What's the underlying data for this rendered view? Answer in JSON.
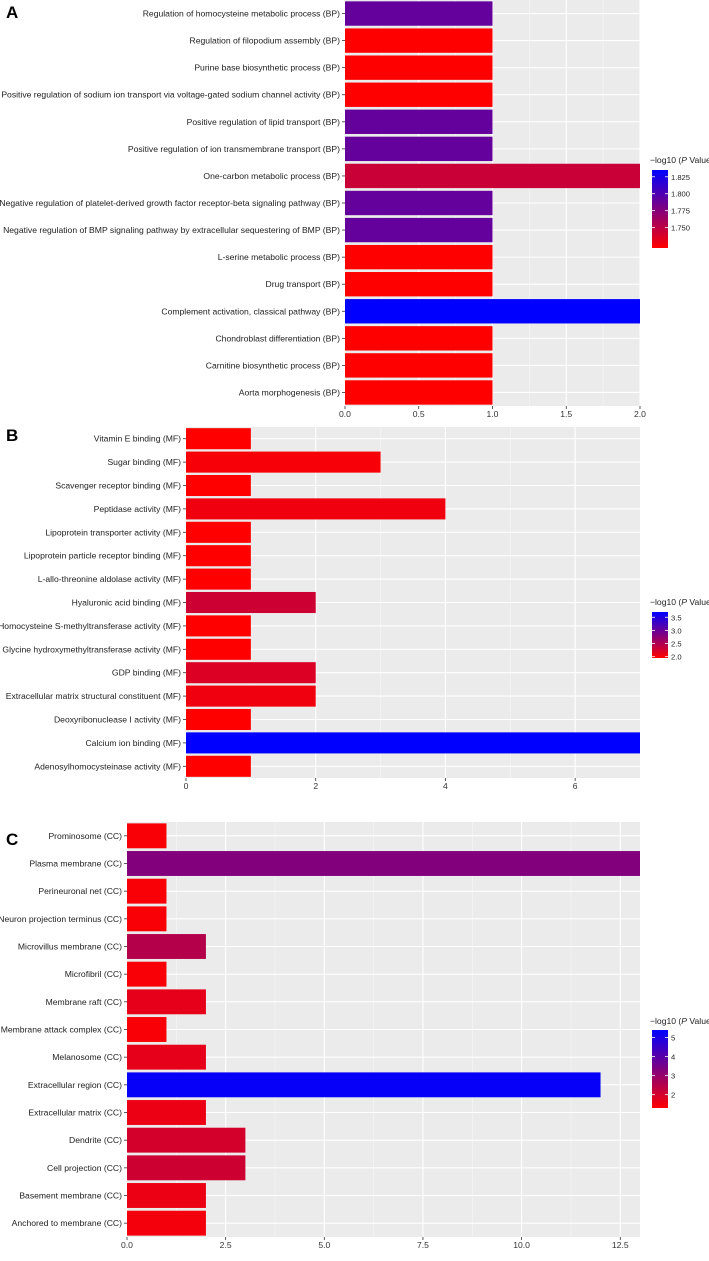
{
  "chart_data": [
    {
      "panel": "A",
      "type": "bar",
      "orientation": "horizontal",
      "categories": [
        "Regulation of homocysteine metabolic process (BP)",
        "Regulation of filopodium assembly (BP)",
        "Purine base biosynthetic process (BP)",
        "Positive regulation of sodium ion transport via voltage-gated sodium channel activity (BP)",
        "Positive regulation of lipid transport (BP)",
        "Positive regulation of ion transmembrane transport (BP)",
        "One-carbon metabolic process (BP)",
        "Negative regulation of platelet-derived growth factor receptor-beta signaling pathway (BP)",
        "Negative regulation of BMP signaling pathway by extracellular sequestering of BMP (BP)",
        "L-serine metabolic process (BP)",
        "Drug transport (BP)",
        "Complement activation, classical pathway (BP)",
        "Chondroblast differentiation (BP)",
        "Carnitine biosynthetic process (BP)",
        "Aorta morphogenesis (BP)"
      ],
      "values": [
        1,
        1,
        1,
        1,
        1,
        1,
        2,
        1,
        1,
        1,
        1,
        2,
        1,
        1,
        1
      ],
      "color_values": [
        1.79,
        1.72,
        1.72,
        1.72,
        1.79,
        1.79,
        1.745,
        1.79,
        1.79,
        1.72,
        1.72,
        1.835,
        1.72,
        1.72,
        1.72
      ],
      "xlim": [
        0,
        2
      ],
      "xticks": [
        0,
        0.5,
        1,
        1.5,
        2
      ],
      "xtick_labels": [
        "0.0",
        "0.5",
        "1.0",
        "1.5",
        "2.0"
      ],
      "legend": {
        "title_prefix": "−log10 (",
        "title_italic": "P",
        "title_suffix": " Value)",
        "range": [
          1.72,
          1.835
        ],
        "ticks": [
          1.825,
          1.8,
          1.775,
          1.75
        ],
        "tick_labels": [
          "1.825",
          "1.800",
          "1.775",
          "1.750"
        ],
        "low_color": "#ff0000",
        "high_color": "#0000ff"
      }
    },
    {
      "panel": "B",
      "type": "bar",
      "orientation": "horizontal",
      "categories": [
        "Vitamin E binding (MF)",
        "Sugar binding (MF)",
        "Scavenger receptor binding (MF)",
        "Peptidase activity (MF)",
        "Lipoprotein transporter activity (MF)",
        "Lipoprotein particle receptor binding (MF)",
        "L-allo-threonine aldolase activity (MF)",
        "Hyaluronic acid binding (MF)",
        "Homocysteine S-methyltransferase activity (MF)",
        "Glycine hydroxymethyltransferase activity (MF)",
        "GDP binding (MF)",
        "Extracellular matrix structural constituent (MF)",
        "Deoxyribonuclease I activity (MF)",
        "Calcium ion binding (MF)",
        "Adenosylhomocysteinase activity (MF)"
      ],
      "values": [
        1,
        3,
        1,
        4,
        1,
        1,
        1,
        2,
        1,
        1,
        2,
        2,
        1,
        7,
        1
      ],
      "color_values": [
        1.95,
        2.0,
        1.95,
        2.05,
        1.95,
        1.95,
        1.95,
        2.3,
        1.95,
        1.95,
        2.2,
        2.05,
        1.95,
        3.7,
        1.95
      ],
      "xlim": [
        0,
        7
      ],
      "xticks": [
        0,
        2,
        4,
        6
      ],
      "xtick_labels": [
        "0",
        "2",
        "4",
        "6"
      ],
      "legend": {
        "title_prefix": "−log10 (",
        "title_italic": "P",
        "title_suffix": " Value)",
        "range": [
          1.95,
          3.7
        ],
        "ticks": [
          3.5,
          3.0,
          2.5,
          2.0
        ],
        "tick_labels": [
          "3.5",
          "3.0",
          "2.5",
          "2.0"
        ],
        "low_color": "#ff0000",
        "high_color": "#0000ff"
      }
    },
    {
      "panel": "C",
      "type": "bar",
      "orientation": "horizontal",
      "categories": [
        "Prominosome (CC)",
        "Plasma membrane (CC)",
        "Perineuronal net (CC)",
        "Neuron projection terminus (CC)",
        "Microvillus membrane (CC)",
        "Microfibril (CC)",
        "Membrane raft (CC)",
        "Membrane attack complex (CC)",
        "Melanosome (CC)",
        "Extracellular region (CC)",
        "Extracellular matrix (CC)",
        "Dendrite (CC)",
        "Cell projection (CC)",
        "Basement membrane (CC)",
        "Anchored to membrane (CC)"
      ],
      "values": [
        1,
        13,
        1,
        1,
        2,
        1,
        2,
        1,
        2,
        12,
        2,
        3,
        3,
        2,
        2
      ],
      "color_values": [
        1.4,
        3.3,
        1.4,
        1.4,
        2.5,
        1.4,
        1.7,
        1.4,
        1.7,
        5.3,
        1.6,
        2.0,
        2.1,
        1.6,
        1.5
      ],
      "xlim": [
        0,
        13
      ],
      "xticks": [
        0,
        2.5,
        5,
        7.5,
        10,
        12.5
      ],
      "xtick_labels": [
        "0.0",
        "2.5",
        "5.0",
        "7.5",
        "10.0",
        "12.5"
      ],
      "legend": {
        "title_prefix": "−log10 (",
        "title_italic": "P",
        "title_suffix": " Value)",
        "range": [
          1.3,
          5.4
        ],
        "ticks": [
          5,
          4,
          3,
          2
        ],
        "tick_labels": [
          "5",
          "4",
          "3",
          "2"
        ],
        "low_color": "#ff0000",
        "high_color": "#0000ff"
      }
    }
  ]
}
